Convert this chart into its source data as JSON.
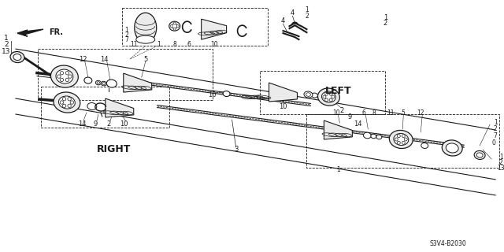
{
  "bg_color": "#ffffff",
  "diagram_code": "S3V4-B2030",
  "label_LEFT": "LEFT",
  "label_RIGHT": "RIGHT",
  "label_FR": "FR.",
  "figsize": [
    6.4,
    3.2
  ],
  "dpi": 100,
  "line_color": "#1a1a1a",
  "gray_fill": "#d8d8d8",
  "light_gray": "#ebebeb"
}
